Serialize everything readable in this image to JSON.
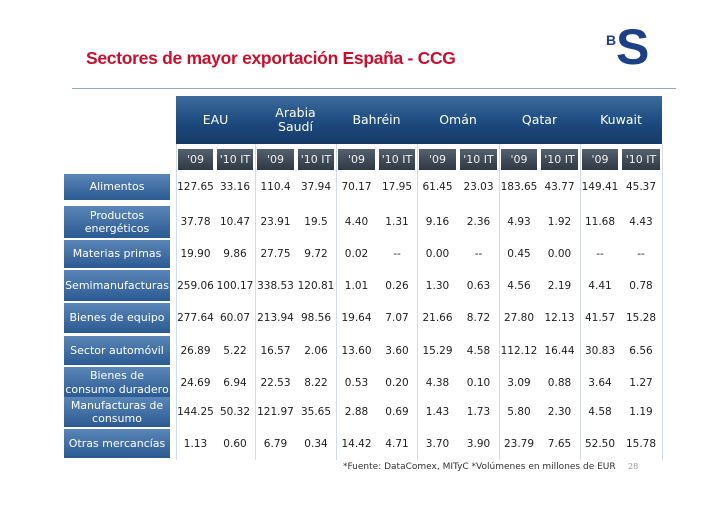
{
  "title": "Sectores de mayor exportación España - CCG",
  "logo": {
    "small": "B",
    "large": "S"
  },
  "countries": [
    "EAU",
    "Arabia\nSaudí",
    "Bahréin",
    "Omán",
    "Qatar",
    "Kuwait"
  ],
  "periods": [
    "'09",
    "'10 IT"
  ],
  "rows": [
    {
      "label": "Alimentos",
      "values": [
        "127.65",
        "33.16",
        "110.4",
        "37.94",
        "70.17",
        "17.95",
        "61.45",
        "23.03",
        "183.65",
        "43.77",
        "149.41",
        "45.37"
      ]
    },
    {
      "label": "Productos energéticos",
      "values": [
        "37.78",
        "10.47",
        "23.91",
        "19.5",
        "4.40",
        "1.31",
        "9.16",
        "2.36",
        "4.93",
        "1.92",
        "11.68",
        "4.43"
      ]
    },
    {
      "label": "Materias primas",
      "values": [
        "19.90",
        "9.86",
        "27.75",
        "9.72",
        "0.02",
        "--",
        "0.00",
        "--",
        "0.45",
        "0.00",
        "--",
        "--"
      ]
    },
    {
      "label": "Semimanufacturas",
      "values": [
        "259.06",
        "100.17",
        "338.53",
        "120.81",
        "1.01",
        "0.26",
        "1.30",
        "0.63",
        "4.56",
        "2.19",
        "4.41",
        "0.78"
      ]
    },
    {
      "label": "Bienes de equipo",
      "values": [
        "277.64",
        "60.07",
        "213.94",
        "98.56",
        "19.64",
        "7.07",
        "21.66",
        "8.72",
        "27.80",
        "12.13",
        "41.57",
        "15.28"
      ]
    },
    {
      "label": "Sector automóvil",
      "values": [
        "26.89",
        "5.22",
        "16.57",
        "2.06",
        "13.60",
        "3.60",
        "15.29",
        "4.58",
        "112.12",
        "16.44",
        "30.83",
        "6.56"
      ]
    },
    {
      "label": "Bienes de consumo duradero",
      "values": [
        "24.69",
        "6.94",
        "22.53",
        "8.22",
        "0.53",
        "0.20",
        "4.38",
        "0.10",
        "3.09",
        "0.88",
        "3.64",
        "1.27"
      ]
    },
    {
      "label": "Manufacturas de consumo",
      "values": [
        "144.25",
        "50.32",
        "121.97",
        "35.65",
        "2.88",
        "0.69",
        "1.43",
        "1.73",
        "5.80",
        "2.30",
        "4.58",
        "1.19"
      ]
    },
    {
      "label": "Otras mercancías",
      "values": [
        "1.13",
        "0.60",
        "6.79",
        "0.34",
        "14.42",
        "4.71",
        "3.70",
        "3.90",
        "23.79",
        "7.65",
        "52.50",
        "15.78"
      ]
    }
  ],
  "footnote": "*Fuente: DataComex, MITyC  *Volúmenes en millones de EUR",
  "page_number": "28"
}
